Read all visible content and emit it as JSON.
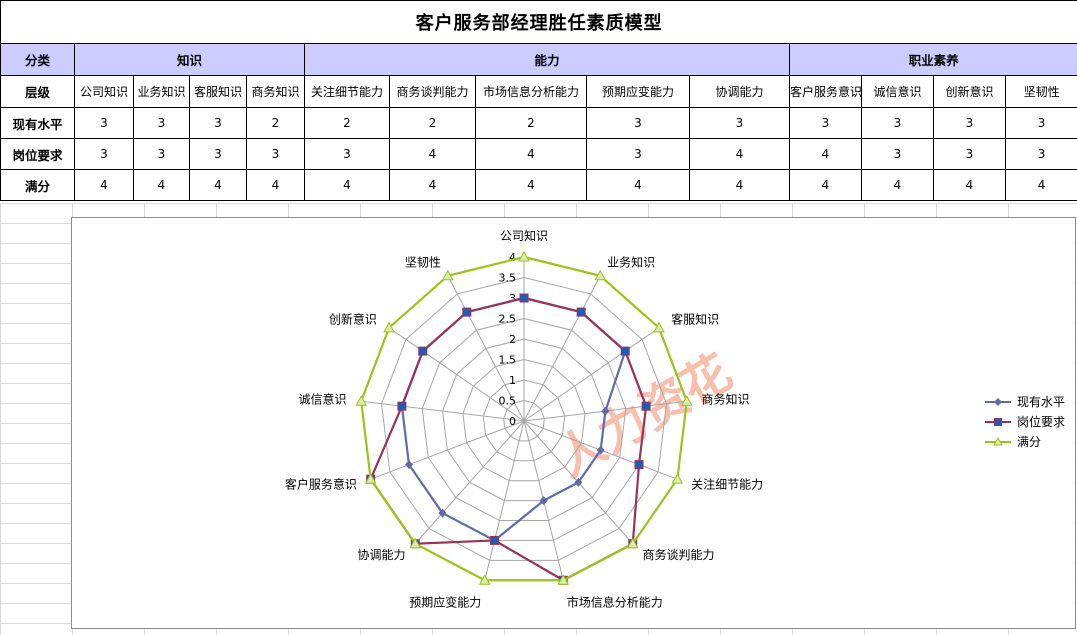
{
  "table": {
    "title": "客户服务部经理胜任素质模型",
    "category_header": "分类",
    "level_header": "层级",
    "categories": [
      {
        "label": "知识",
        "span": 4
      },
      {
        "label": "能力",
        "span": 5
      },
      {
        "label": "职业素养",
        "span": 4
      }
    ],
    "levels": [
      "公司知识",
      "业务知识",
      "客服知识",
      "商务知识",
      "关注细节能力",
      "商务谈判能力",
      "市场信息分析能力",
      "预期应变能力",
      "协调能力",
      "客户服务意识",
      "诚信意识",
      "创新意识",
      "坚韧性"
    ],
    "rows": [
      {
        "label": "现有水平",
        "values": [
          3,
          3,
          3,
          2,
          2,
          2,
          2,
          3,
          3,
          3,
          3,
          3,
          3
        ]
      },
      {
        "label": "岗位要求",
        "values": [
          3,
          3,
          3,
          3,
          3,
          4,
          4,
          3,
          4,
          4,
          3,
          3,
          3
        ]
      },
      {
        "label": "满分",
        "values": [
          4,
          4,
          4,
          4,
          4,
          4,
          4,
          4,
          4,
          4,
          4,
          4,
          4
        ]
      }
    ]
  },
  "chart_data": {
    "type": "radar",
    "categories": [
      "公司知识",
      "业务知识",
      "客服知识",
      "商务知识",
      "关注细节能力",
      "商务谈判能力",
      "市场信息分析能力",
      "预期应变能力",
      "协调能力",
      "客户服务意识",
      "诚信意识",
      "创新意识",
      "坚韧性"
    ],
    "series": [
      {
        "name": "现有水平",
        "values": [
          3,
          3,
          3,
          2,
          2,
          2,
          2,
          3,
          3,
          3,
          3,
          3,
          3
        ],
        "color": "#636aa8",
        "marker": "diamond"
      },
      {
        "name": "岗位要求",
        "values": [
          3,
          3,
          3,
          3,
          3,
          4,
          4,
          3,
          4,
          4,
          3,
          3,
          3
        ],
        "color": "#983259",
        "marker": "square"
      },
      {
        "name": "满分",
        "values": [
          4,
          4,
          4,
          4,
          4,
          4,
          4,
          4,
          4,
          4,
          4,
          4,
          4
        ],
        "color": "#9ac41a",
        "marker": "triangle"
      }
    ],
    "radial_ticks": [
      "0",
      "0.5",
      "1",
      "1.5",
      "2",
      "2.5",
      "3",
      "3.5",
      "4"
    ],
    "rmax": 4,
    "marker_fill": "#1f5bb8",
    "grid": true,
    "legend_position": "right",
    "watermark": "人力资花"
  }
}
